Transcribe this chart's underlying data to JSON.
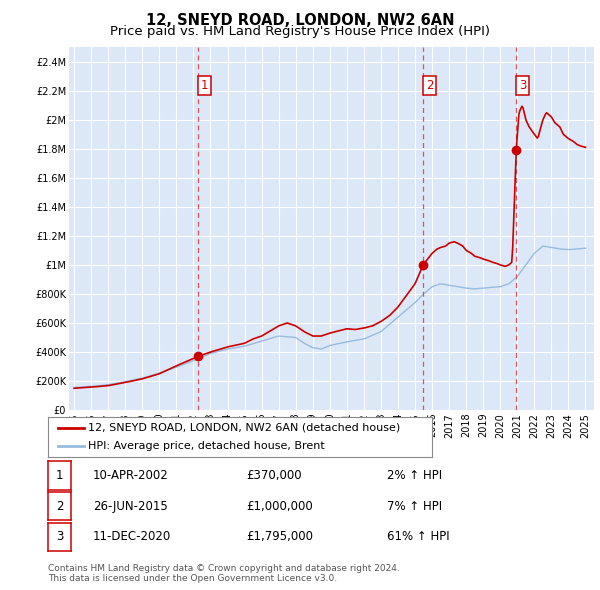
{
  "title": "12, SNEYD ROAD, LONDON, NW2 6AN",
  "subtitle": "Price paid vs. HM Land Registry's House Price Index (HPI)",
  "ylim": [
    0,
    2500000
  ],
  "yticks": [
    0,
    200000,
    400000,
    600000,
    800000,
    1000000,
    1200000,
    1400000,
    1600000,
    1800000,
    2000000,
    2200000,
    2400000
  ],
  "ytick_labels": [
    "£0",
    "£200K",
    "£400K",
    "£600K",
    "£800K",
    "£1M",
    "£1.2M",
    "£1.4M",
    "£1.6M",
    "£1.8M",
    "£2M",
    "£2.2M",
    "£2.4M"
  ],
  "xlim_start": 1994.7,
  "xlim_end": 2025.5,
  "xticks": [
    1995,
    1996,
    1997,
    1998,
    1999,
    2000,
    2001,
    2002,
    2003,
    2004,
    2005,
    2006,
    2007,
    2008,
    2009,
    2010,
    2011,
    2012,
    2013,
    2014,
    2015,
    2016,
    2017,
    2018,
    2019,
    2020,
    2021,
    2022,
    2023,
    2024,
    2025
  ],
  "plot_bg_color": "#dce8f8",
  "grid_color": "#ffffff",
  "red_line_color": "#cc0000",
  "blue_line_color": "#99bbdd",
  "marker_color": "#cc0000",
  "dashed_line_color": "#dd4444",
  "sale_points": [
    {
      "year": 2002.27,
      "price": 370000,
      "label": "1"
    },
    {
      "year": 2015.48,
      "price": 1000000,
      "label": "2"
    },
    {
      "year": 2020.94,
      "price": 1795000,
      "label": "3"
    }
  ],
  "vline_years": [
    2002.27,
    2015.48,
    2020.94
  ],
  "legend_entries": [
    "12, SNEYD ROAD, LONDON, NW2 6AN (detached house)",
    "HPI: Average price, detached house, Brent"
  ],
  "table_rows": [
    {
      "num": "1",
      "date": "10-APR-2002",
      "price": "£370,000",
      "change": "2% ↑ HPI"
    },
    {
      "num": "2",
      "date": "26-JUN-2015",
      "price": "£1,000,000",
      "change": "7% ↑ HPI"
    },
    {
      "num": "3",
      "date": "11-DEC-2020",
      "price": "£1,795,000",
      "change": "61% ↑ HPI"
    }
  ],
  "footnote": "Contains HM Land Registry data © Crown copyright and database right 2024.\nThis data is licensed under the Open Government Licence v3.0.",
  "title_fontsize": 10.5,
  "subtitle_fontsize": 9.5,
  "tick_fontsize": 7,
  "legend_fontsize": 8,
  "table_fontsize": 8.5
}
